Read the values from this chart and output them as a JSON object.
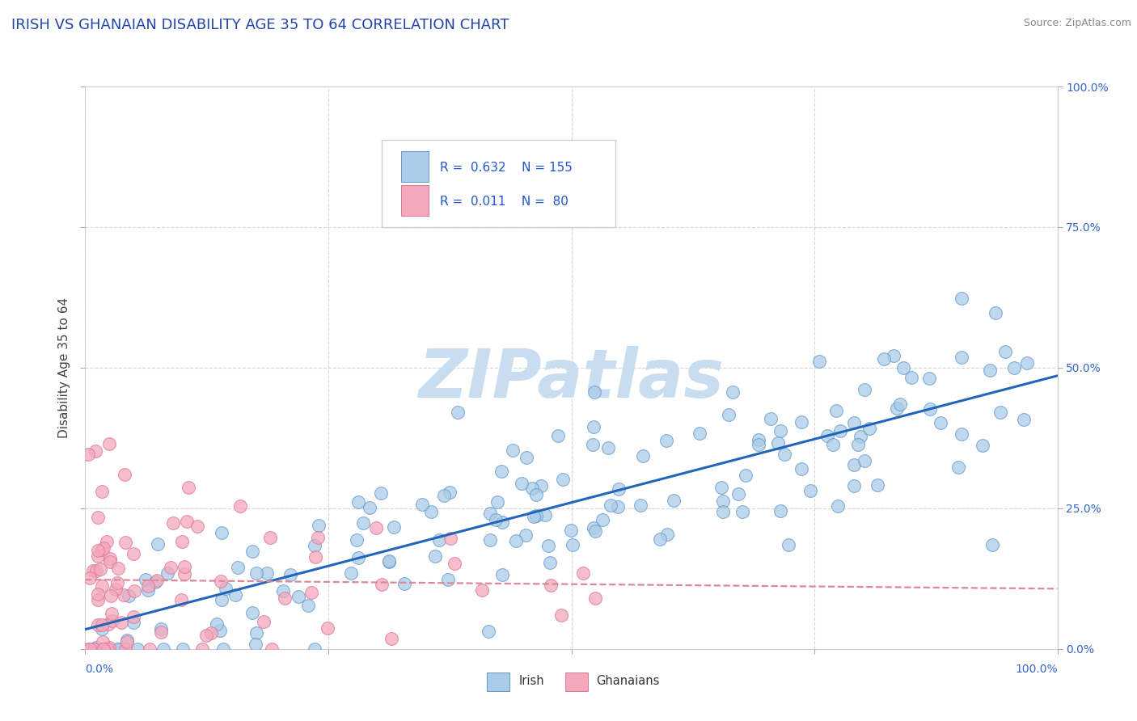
{
  "title": "IRISH VS GHANAIAN DISABILITY AGE 35 TO 64 CORRELATION CHART",
  "source": "Source: ZipAtlas.com",
  "ylabel": "Disability Age 35 to 64",
  "xlim": [
    0,
    1
  ],
  "ylim": [
    0,
    1
  ],
  "irish_R": 0.632,
  "irish_N": 155,
  "ghanaian_R": 0.011,
  "ghanaian_N": 80,
  "irish_color": "#aacce8",
  "irish_edge_color": "#6699cc",
  "ghanaian_color": "#f4a8bc",
  "ghanaian_edge_color": "#dd7799",
  "irish_line_color": "#2266bb",
  "ghanaian_line_color": "#dd8899",
  "title_color": "#2244aa",
  "legend_text_color": "#2255cc",
  "axis_label_color": "#3366cc",
  "watermark_color": "#c8ddf0",
  "background_color": "#ffffff",
  "grid_color": "#cccccc",
  "tick_labels": [
    "0.0%",
    "25.0%",
    "50.0%",
    "75.0%",
    "100.0%"
  ],
  "tick_vals": [
    0.0,
    0.25,
    0.5,
    0.75,
    1.0
  ]
}
